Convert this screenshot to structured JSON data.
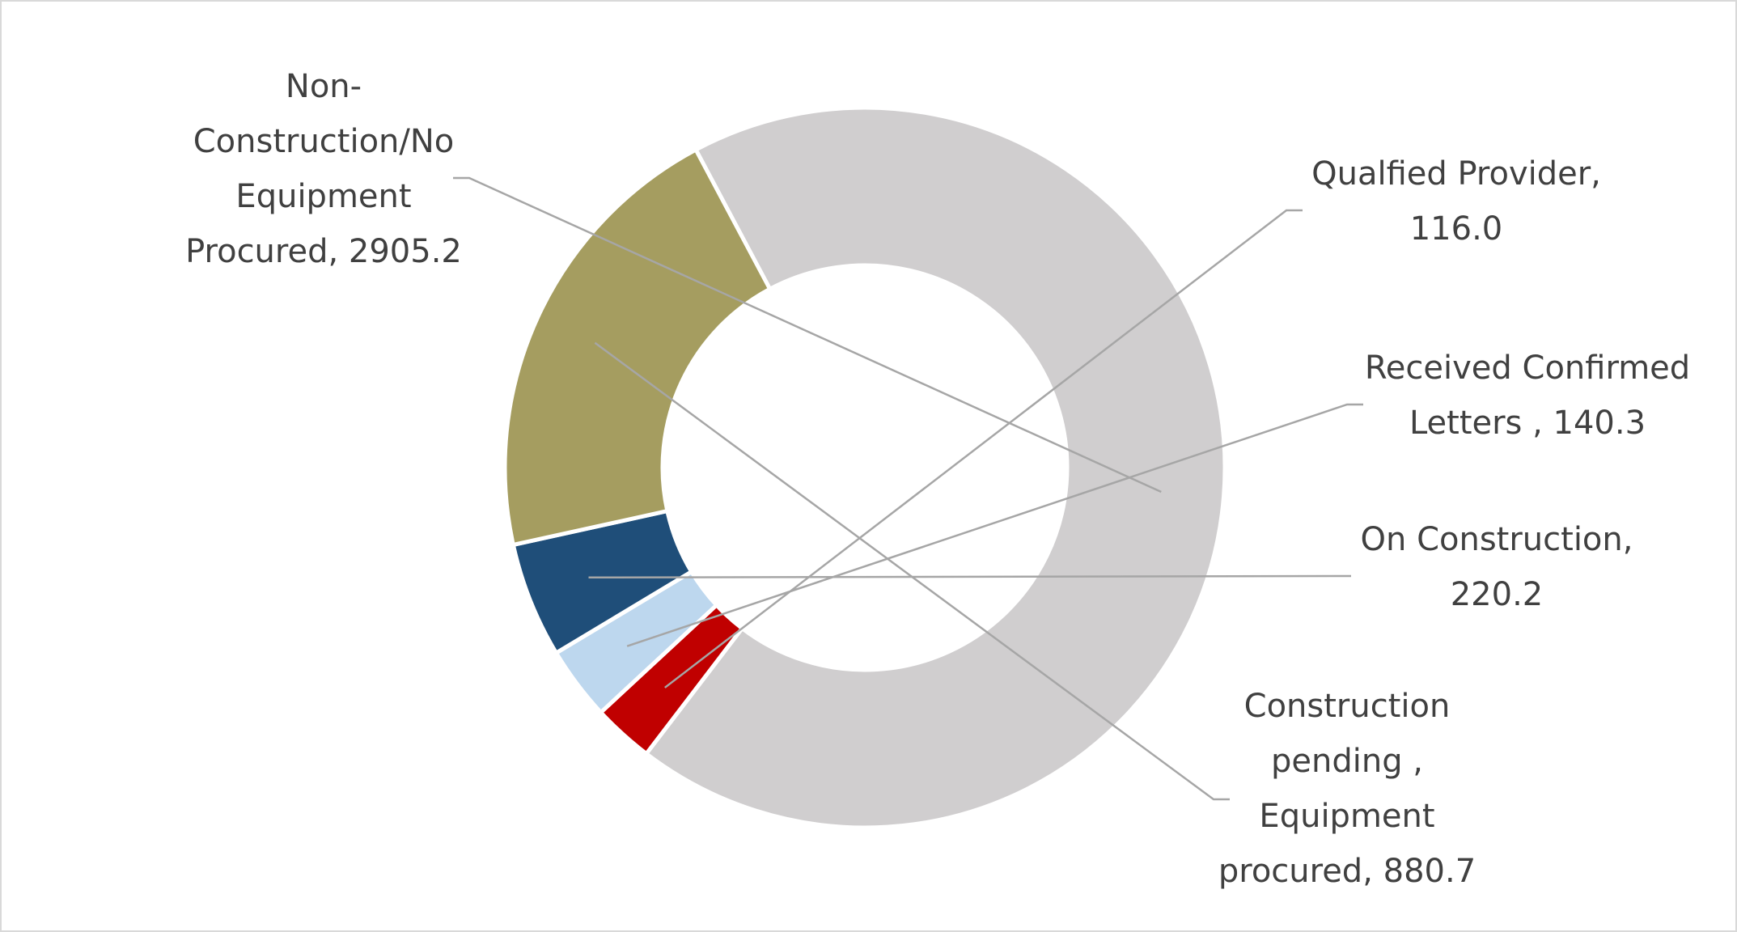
{
  "chart_data": {
    "type": "pie",
    "title": "",
    "series": [
      {
        "values": [
          2905.2,
          116.0,
          140.3,
          220.2,
          880.7
        ],
        "categories": [
          "Non-Construction/No Equipment Procured",
          "Qualfied Provider",
          "Received Confirmed Letters ",
          "On Construction",
          "Construction pending , Equipment procured"
        ]
      }
    ],
    "colors": [
      "#d0cecf",
      "#c00000",
      "#bdd7ee",
      "#1f4e79",
      "#a59d60"
    ],
    "labels": [
      {
        "lines": [
          "Non-",
          "Construction/No",
          "Equipment",
          "Procured, 2905.2"
        ]
      },
      {
        "lines": [
          "Qualfied Provider,",
          "116.0"
        ]
      },
      {
        "lines": [
          "Received Confirmed",
          "Letters , 140.3"
        ]
      },
      {
        "lines": [
          "On Construction,",
          "220.2"
        ]
      },
      {
        "lines": [
          "Construction",
          "pending ,",
          "Equipment",
          "procured, 880.7"
        ]
      }
    ],
    "legend": "none",
    "hole": "donut"
  }
}
